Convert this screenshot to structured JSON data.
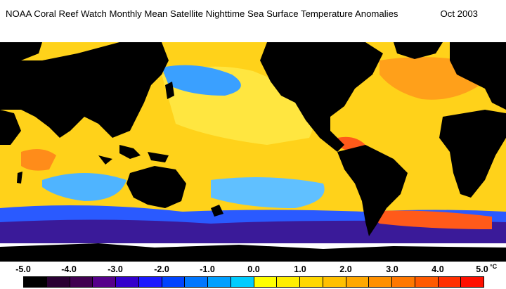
{
  "title": "NOAA Coral Reef Watch Monthly Mean Satellite Nighttime Sea Surface Temperature Anomalies",
  "date": "Oct 2003",
  "legend": {
    "ticks": [
      "-5.0",
      "-4.0",
      "-3.0",
      "-2.0",
      "-1.0",
      "0.0",
      "1.0",
      "2.0",
      "3.0",
      "4.0",
      "5.0"
    ],
    "unit": "°C",
    "colors": [
      "#000000",
      "#2a0033",
      "#400050",
      "#55008a",
      "#3300cc",
      "#1a1aff",
      "#0044ff",
      "#0077ff",
      "#00a0ff",
      "#00ccff",
      "#ffff00",
      "#ffee00",
      "#ffd700",
      "#ffc000",
      "#ffa800",
      "#ff9000",
      "#ff7800",
      "#ff5a00",
      "#ff3000",
      "#ff1000"
    ]
  },
  "map_colors": {
    "land": "#000000",
    "ice": "#ffffff",
    "ocean_warm": "#ffd21a",
    "ocean_hot": "#ff8c1a",
    "ocean_cool": "#3aa0ff",
    "ocean_cold": "#1a3aff",
    "ocean_deep_cold": "#3a1a99"
  }
}
